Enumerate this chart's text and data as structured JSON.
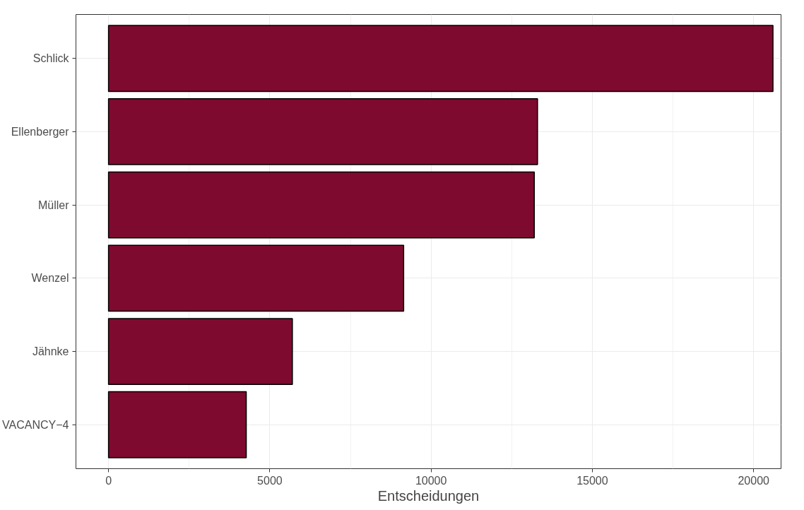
{
  "chart_data": {
    "type": "bar",
    "orientation": "horizontal",
    "xlabel": "Entscheidungen",
    "categories": [
      "Schlick",
      "Ellenberger",
      "Müller",
      "Wenzel",
      "Jähnke",
      "VACANCY−4"
    ],
    "values": [
      20600,
      13300,
      13200,
      9150,
      5700,
      4270
    ],
    "color": "#7f0a2f",
    "xlim": [
      -1010,
      20850
    ],
    "xticks": [
      0,
      5000,
      10000,
      15000,
      20000
    ],
    "grid": true
  }
}
